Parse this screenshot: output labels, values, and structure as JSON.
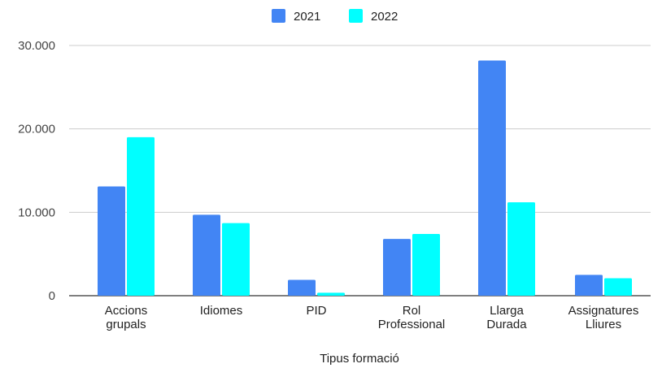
{
  "chart_data": {
    "type": "bar",
    "categories": [
      [
        "Accions",
        "grupals"
      ],
      [
        "Idiomes"
      ],
      [
        "PID"
      ],
      [
        "Rol",
        "Professional"
      ],
      [
        "Llarga",
        "Durada"
      ],
      [
        "Assignatures",
        "Lliures"
      ]
    ],
    "series": [
      {
        "name": "2021",
        "color": "#4285f4",
        "values": [
          13100,
          9700,
          1900,
          6800,
          28200,
          2500
        ]
      },
      {
        "name": "2022",
        "color": "#00ffff",
        "values": [
          19000,
          8700,
          350,
          7400,
          11200,
          2100
        ]
      }
    ],
    "xlabel": "Tipus formació",
    "ylabel": "",
    "ylim": [
      0,
      30000
    ],
    "yticks": [
      {
        "value": 0,
        "label": "0"
      },
      {
        "value": 10000,
        "label": "10.000"
      },
      {
        "value": 20000,
        "label": "20.000"
      },
      {
        "value": 30000,
        "label": "30.000"
      }
    ],
    "grid": true,
    "legend_position": "top-center"
  }
}
